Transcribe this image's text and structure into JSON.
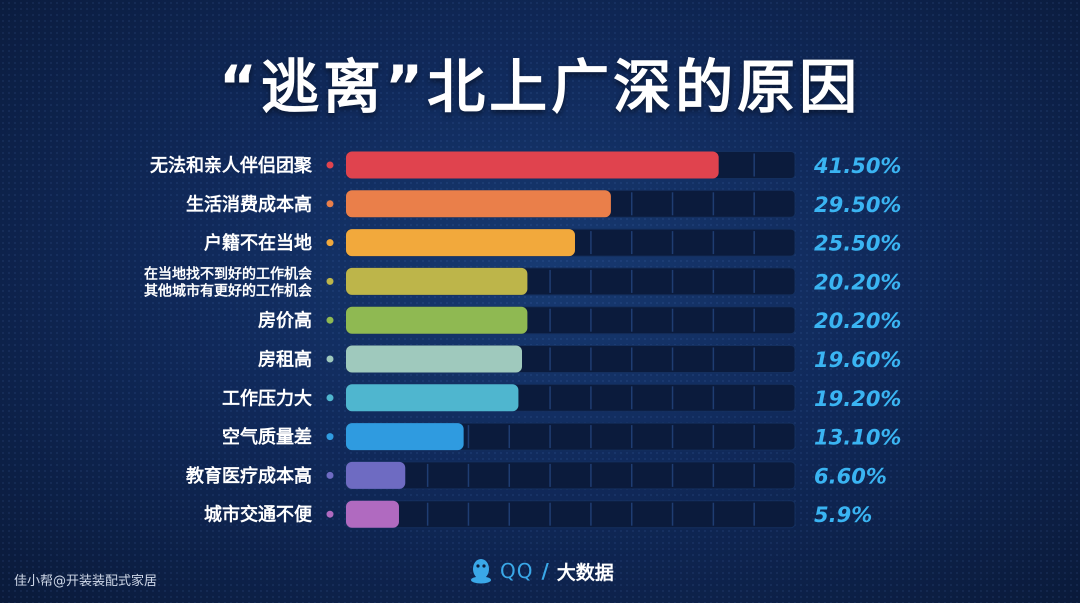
{
  "title": "“逃离”北上广深的原因",
  "brand": {
    "qq": "QQ",
    "slash": "/",
    "suffix": "大数据"
  },
  "watermark": "佳小帮@开装装配式家居",
  "chart_data": {
    "type": "bar",
    "orientation": "horizontal",
    "title": "“逃离”北上广深的原因",
    "xlim": [
      0,
      50
    ],
    "grid": true,
    "categories": [
      [
        "无法和亲人伴侣团聚"
      ],
      [
        "生活消费成本高"
      ],
      [
        "户籍不在当地"
      ],
      [
        "在当地找不到好的工作机会",
        "其他城市有更好的工作机会"
      ],
      [
        "房价高"
      ],
      [
        "房租高"
      ],
      [
        "工作压力大"
      ],
      [
        "空气质量差"
      ],
      [
        "教育医疗成本高"
      ],
      [
        "城市交通不便"
      ]
    ],
    "values": [
      41.5,
      29.5,
      25.5,
      20.2,
      20.2,
      19.6,
      19.2,
      13.1,
      6.6,
      5.9
    ],
    "value_labels": [
      "41.50%",
      "29.50%",
      "25.50%",
      "20.20%",
      "20.20%",
      "19.60%",
      "19.20%",
      "13.10%",
      "6.60%",
      "5.9%"
    ],
    "colors": [
      "#e0434e",
      "#ea7f4a",
      "#f2a93c",
      "#bdb54a",
      "#8fb952",
      "#9fc9bd",
      "#4fb6cf",
      "#2f9be0",
      "#6e6bc2",
      "#b06ac0"
    ]
  }
}
